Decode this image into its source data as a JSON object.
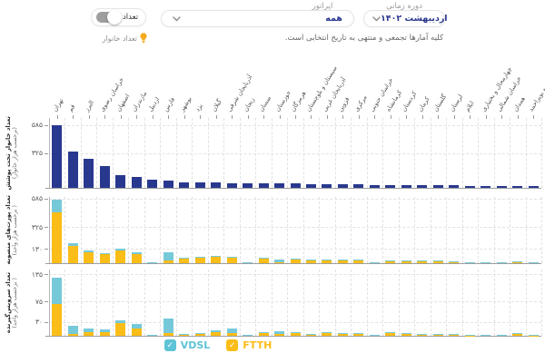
{
  "controls": {
    "time_period": {
      "label": "دوره زمانی",
      "value": "اردیبهشت ۱۴۰۲"
    },
    "operator": {
      "label": "اپراتور",
      "value": "همه"
    },
    "count_toggle": {
      "label": "تعداد"
    },
    "household_hint": {
      "label": "تعداد خانوار"
    },
    "note": "کلیه آمارها تجمعی و منتهی به تاریخ انتخابی است."
  },
  "legend": [
    {
      "id": "vdsl",
      "label": "VDSL",
      "color": "#5ec3d6"
    },
    {
      "id": "ftth",
      "label": "FTTH",
      "color": "#fbbd17"
    }
  ],
  "colors": {
    "navy": "#29388f",
    "vdsl": "#76c9d9",
    "ftth": "#fbbd17",
    "accent_text": "#2b3990",
    "grid": "#e2e2e2"
  },
  "categories": [
    "تهران",
    "قم",
    "البرز",
    "خراسان رضوی",
    "اصفهان",
    "مازندران",
    "اردبیل",
    "فارس",
    "بوشهر",
    "یزد",
    "گیلان",
    "آذربایجان شرقی",
    "زنجان",
    "سمنان",
    "خوزستان",
    "هرمزگان",
    "سیستان و بلوچستان",
    "آذربایجان غربی",
    "قزوین",
    "مرکزی",
    "خراسان جنوبی",
    "کرمانشاه",
    "کردستان",
    "کرمان",
    "گلستان",
    "لرستان",
    "ایلام",
    "چهارمحال و بختیاری",
    "خراسان شمالی",
    "همدان",
    "کهگیلویه و بویراحمد"
  ],
  "chart_data": [
    {
      "type": "bar",
      "ylabel": "تعداد خانوار تحت پوشش",
      "unit": "(برحسب هزار خانوار)",
      "ylim": [
        0,
        650
      ],
      "yticks": [
        {
          "value": 585,
          "label": "۵۸۵"
        },
        {
          "value": 325,
          "label": "۳۲۵"
        }
      ],
      "series": [
        {
          "name": "households",
          "color": "#29388f",
          "values": [
            580,
            340,
            270,
            200,
            115,
            105,
            72,
            65,
            52,
            50,
            48,
            46,
            44,
            42,
            40,
            38,
            36,
            34,
            32,
            30,
            28,
            26,
            25,
            24,
            23,
            22,
            21,
            20,
            19,
            18,
            17
          ]
        }
      ]
    },
    {
      "type": "stacked-bar",
      "ylabel": "تعداد پورت‌های منصوبه",
      "unit": "(برحسب هزار واحد )",
      "ylim": [
        0,
        600
      ],
      "yticks": [
        {
          "value": 585,
          "label": "۵۸۵"
        },
        {
          "value": 325,
          "label": "۳۲۵"
        },
        {
          "value": 130,
          "label": "۱۳۰"
        }
      ],
      "series": [
        {
          "name": "FTTH",
          "color": "#fbbd17",
          "values": [
            460,
            160,
            100,
            80,
            115,
            85,
            10,
            27,
            48,
            52,
            55,
            50,
            8,
            45,
            12,
            35,
            28,
            30,
            28,
            26,
            8,
            22,
            18,
            20,
            18,
            16,
            6,
            10,
            8,
            14,
            5
          ]
        },
        {
          "name": "VDSL",
          "color": "#76c9d9",
          "values": [
            115,
            20,
            12,
            12,
            18,
            14,
            2,
            70,
            5,
            6,
            8,
            8,
            2,
            5,
            20,
            4,
            3,
            4,
            5,
            4,
            2,
            4,
            3,
            4,
            3,
            3,
            1,
            2,
            2,
            3,
            1
          ]
        }
      ]
    },
    {
      "type": "stacked-bar",
      "ylabel": "تعداد سرویس‌گیرنده",
      "unit": "(برحسب هزار واحد )",
      "ylim": [
        0,
        145
      ],
      "yticks": [
        {
          "value": 135,
          "label": "۱۳۵"
        },
        {
          "value": 75,
          "label": "۷۵"
        },
        {
          "value": 30,
          "label": "۳۰"
        }
      ],
      "series": [
        {
          "name": "FTTH",
          "color": "#fbbd17",
          "values": [
            70,
            4,
            8,
            7,
            28,
            15,
            1.5,
            5,
            2,
            5,
            7,
            6,
            1,
            6,
            4,
            5,
            3,
            5,
            4,
            4,
            1,
            5,
            4,
            3,
            2,
            3,
            0.5,
            1,
            1,
            4,
            0.5
          ]
        },
        {
          "name": "VDSL",
          "color": "#76c9d9",
          "values": [
            58,
            18,
            8,
            6,
            5,
            10,
            0.5,
            33,
            1,
            1,
            5,
            9,
            0.5,
            2,
            6,
            2,
            1,
            3,
            2,
            2,
            0.5,
            2,
            1,
            1,
            1,
            1,
            0.5,
            0.5,
            0.5,
            1,
            0.5
          ]
        }
      ]
    }
  ]
}
